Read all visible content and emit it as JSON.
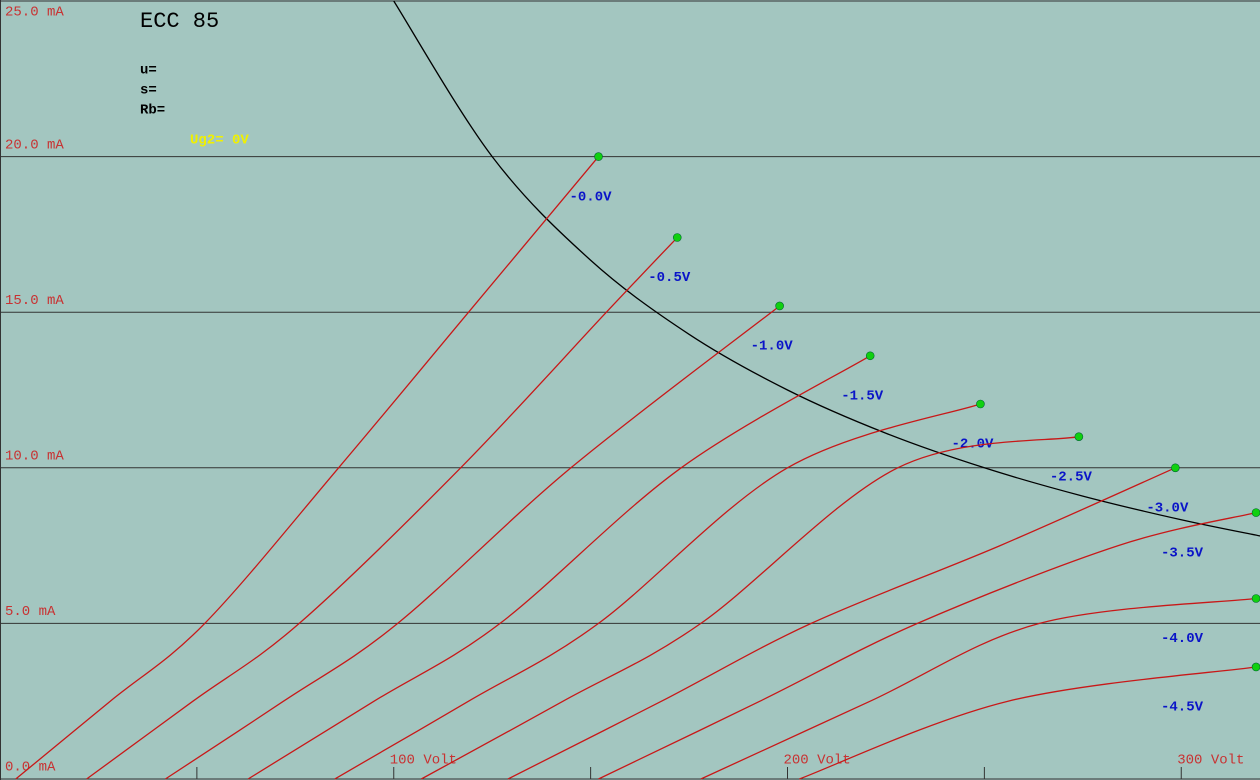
{
  "chart_data": {
    "type": "line",
    "title": "ECC 85",
    "params": [
      "u=",
      "s=",
      "Rb="
    ],
    "annotation": "Ug2= 0V",
    "xlim": [
      0,
      320
    ],
    "ylim": [
      0,
      25
    ],
    "xticks": [
      {
        "value": 100,
        "label": "100 Volt"
      },
      {
        "value": 200,
        "label": "200 Volt"
      },
      {
        "value": 300,
        "label": "300 Volt"
      }
    ],
    "x_minor_ticks": [
      50,
      150,
      250
    ],
    "yticks": [
      {
        "value": 0,
        "label": "0.0 mA"
      },
      {
        "value": 5,
        "label": "5.0 mA"
      },
      {
        "value": 10,
        "label": "10.0 mA"
      },
      {
        "value": 15,
        "label": "15.0 mA"
      },
      {
        "value": 20,
        "label": "20.0 mA"
      },
      {
        "value": 25,
        "label": "25.0 mA"
      }
    ],
    "grid": true,
    "background": "#a3c6c0",
    "line_color": "#c81818",
    "marker_color": "#10d010",
    "label_color": "#0a14c8",
    "axis_label_color": "#c83232",
    "annotation_color": "#f0f000",
    "hyperbola_color": "#000000",
    "series": [
      {
        "name": "-0.0V",
        "x": [
          4,
          28,
          52,
          86,
          119,
          152
        ],
        "values": [
          0,
          2.5,
          5,
          10,
          15,
          20
        ]
      },
      {
        "name": "-0.5V",
        "x": [
          22,
          49,
          76,
          117,
          154,
          172
        ],
        "values": [
          0,
          2.5,
          5,
          10,
          15,
          17.4
        ]
      },
      {
        "name": "-1.0V",
        "x": [
          42,
          72,
          101,
          145,
          198
        ],
        "values": [
          0,
          2.5,
          5,
          10,
          15.2
        ]
      },
      {
        "name": "-1.5V",
        "x": [
          63,
          95,
          127,
          173,
          221
        ],
        "values": [
          0,
          2.5,
          5,
          10,
          13.6
        ]
      },
      {
        "name": "-2.0V",
        "x": [
          85,
          119,
          152,
          200,
          249
        ],
        "values": [
          0,
          2.5,
          5,
          10,
          12.05
        ]
      },
      {
        "name": "-2.5V",
        "x": [
          107,
          143,
          178,
          228,
          274
        ],
        "values": [
          0,
          2.5,
          5,
          10,
          11
        ]
      },
      {
        "name": "-3.0V",
        "x": [
          129,
          168,
          206,
          254,
          298.5
        ],
        "values": [
          0,
          2.5,
          5,
          7.5,
          10
        ]
      },
      {
        "name": "-3.5V",
        "x": [
          152,
          193,
          233,
          284,
          319
        ],
        "values": [
          0,
          2.5,
          5,
          7.5,
          8.56
        ]
      },
      {
        "name": "-4.0V",
        "x": [
          178,
          221,
          264,
          319
        ],
        "values": [
          0,
          2.5,
          5,
          5.8
        ]
      },
      {
        "name": "-4.5V",
        "x": [
          203,
          256,
          319
        ],
        "values": [
          0,
          2.5,
          3.6
        ]
      }
    ],
    "hyperbola": {
      "x": [
        100,
        125,
        150,
        175,
        200,
        225,
        250,
        275,
        300,
        320
      ],
      "values": [
        25,
        20,
        16.67,
        14.29,
        12.5,
        11.11,
        10,
        9.09,
        8.33,
        7.81
      ]
    }
  }
}
